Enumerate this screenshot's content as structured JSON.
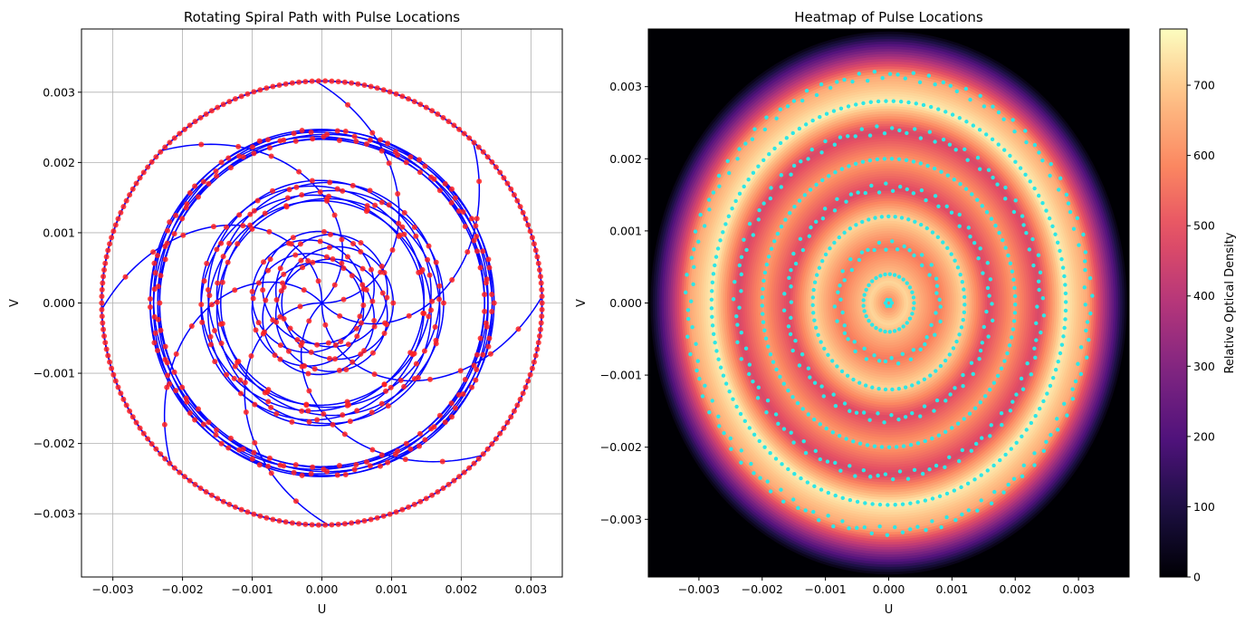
{
  "chart_data": [
    {
      "type": "line",
      "title": "Rotating Spiral Path with Pulse Locations",
      "xlabel": "U",
      "ylabel": "V",
      "xlim": [
        -0.00345,
        0.00345
      ],
      "ylim": [
        -0.0039,
        0.0039
      ],
      "grid": true,
      "xticks": [
        -0.003,
        -0.002,
        -0.001,
        0.0,
        0.001,
        0.002,
        0.003
      ],
      "xtick_labels": [
        "−0.003",
        "−0.002",
        "−0.001",
        "0.000",
        "0.001",
        "0.002",
        "0.003"
      ],
      "yticks": [
        -0.003,
        -0.002,
        -0.001,
        0.0,
        0.001,
        0.002,
        0.003
      ],
      "ytick_labels": [
        "−0.003",
        "−0.002",
        "−0.001",
        "0.000",
        "0.001",
        "0.002",
        "0.003"
      ],
      "colors": {
        "path": "#0000ff",
        "pulse": "#ff2020"
      },
      "path": {
        "radius_levels": [
          0.0,
          0.0008,
          0.0016,
          0.0024,
          0.00316
        ],
        "center_offset": 0.0003,
        "spokes": 8,
        "rotation_steps": 7
      }
    },
    {
      "type": "heatmap",
      "title": "Heatmap of Pulse Locations",
      "xlabel": "U",
      "ylabel": "V",
      "xlim": [
        -0.0038,
        0.0038
      ],
      "ylim": [
        -0.0038,
        0.0038
      ],
      "xticks": [
        -0.003,
        -0.002,
        -0.001,
        0.0,
        0.001,
        0.002,
        0.003
      ],
      "xtick_labels": [
        "−0.003",
        "−0.002",
        "−0.001",
        "0.000",
        "0.001",
        "0.002",
        "0.003"
      ],
      "yticks": [
        -0.003,
        -0.002,
        -0.001,
        0.0,
        0.001,
        0.002,
        0.003
      ],
      "ytick_labels": [
        "−0.003",
        "−0.002",
        "−0.001",
        "0.000",
        "0.001",
        "0.002",
        "0.003"
      ],
      "colormap": "magma",
      "colorbar": {
        "label": "Relative Optical Density",
        "range": [
          0,
          780
        ],
        "ticks": [
          0,
          100,
          200,
          300,
          400,
          500,
          600,
          700
        ],
        "tick_labels": [
          "0",
          "100",
          "200",
          "300",
          "400",
          "500",
          "600",
          "700"
        ]
      },
      "colors": {
        "pulse": "#2ee6e6"
      },
      "density_rings": [
        {
          "radius": 0.0,
          "value": 560
        },
        {
          "radius": 0.0003,
          "value": 720
        },
        {
          "radius": 0.0008,
          "value": 560
        },
        {
          "radius": 0.0012,
          "value": 720
        },
        {
          "radius": 0.0016,
          "value": 470
        },
        {
          "radius": 0.002,
          "value": 620
        },
        {
          "radius": 0.0024,
          "value": 460
        },
        {
          "radius": 0.0028,
          "value": 760
        },
        {
          "radius": 0.00316,
          "value": 640
        },
        {
          "radius": 0.0038,
          "value": 0
        }
      ]
    }
  ]
}
